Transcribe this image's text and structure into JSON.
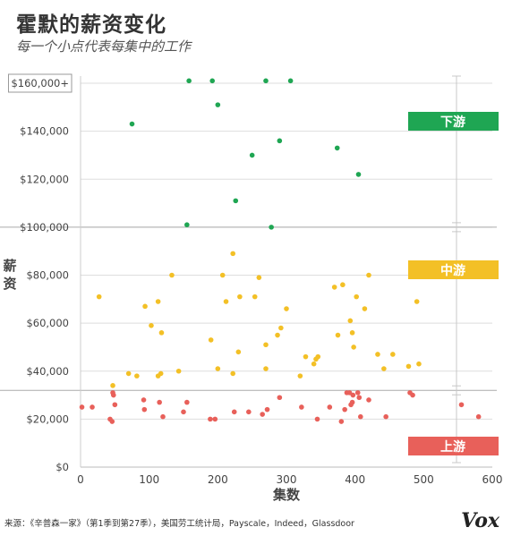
{
  "title": "霍默的薪资变化",
  "subtitle": "每一个小点代表每集中的工作",
  "footer": "来源：《辛普森一家》（第1季到第27季），美国劳工统计局，Payscale，Indeed，Glassdoor",
  "brand": "Vox",
  "chart_data": {
    "type": "scatter",
    "xlabel": "集数",
    "ylabel": "薪资",
    "xlim": [
      0,
      600
    ],
    "ylim": [
      0,
      170000
    ],
    "x_ticks": [
      0,
      100,
      200,
      300,
      400,
      500,
      600
    ],
    "x_tick_labels": [
      "0",
      "100",
      "200",
      "300",
      "400",
      "500",
      "600"
    ],
    "y_ticks": [
      0,
      20000,
      40000,
      60000,
      80000,
      100000,
      120000,
      140000,
      160000
    ],
    "y_tick_labels": [
      "$0",
      "$20,000",
      "$40,000",
      "$60,000",
      "$80,000",
      "$100,000",
      "$120,000",
      "$140,000",
      "$160,000+"
    ],
    "thresholds": [
      32000,
      100000
    ],
    "grid": "horizontal",
    "series": [
      {
        "name": "下游",
        "color": "#1fa653",
        "points": [
          [
            158,
            161000
          ],
          [
            192,
            161000
          ],
          [
            270,
            161000
          ],
          [
            306,
            161000
          ],
          [
            75,
            143000
          ],
          [
            200,
            151000
          ],
          [
            290,
            136000
          ],
          [
            374,
            133000
          ],
          [
            250,
            130000
          ],
          [
            405,
            122000
          ],
          [
            226,
            111000
          ],
          [
            155,
            101000
          ],
          [
            278,
            100000
          ]
        ]
      },
      {
        "name": "中游",
        "color": "#f3c026",
        "points": [
          [
            27,
            71000
          ],
          [
            133,
            80000
          ],
          [
            222,
            89000
          ],
          [
            207,
            80000
          ],
          [
            260,
            79000
          ],
          [
            113,
            69000
          ],
          [
            94,
            67000
          ],
          [
            212,
            69000
          ],
          [
            232,
            71000
          ],
          [
            254,
            71000
          ],
          [
            300,
            66000
          ],
          [
            370,
            75000
          ],
          [
            382,
            76000
          ],
          [
            420,
            80000
          ],
          [
            414,
            66000
          ],
          [
            402,
            71000
          ],
          [
            490,
            69000
          ],
          [
            103,
            59000
          ],
          [
            118,
            56000
          ],
          [
            190,
            53000
          ],
          [
            270,
            51000
          ],
          [
            292,
            58000
          ],
          [
            287,
            55000
          ],
          [
            375,
            55000
          ],
          [
            393,
            61000
          ],
          [
            396,
            56000
          ],
          [
            398,
            50000
          ],
          [
            230,
            48000
          ],
          [
            328,
            46000
          ],
          [
            343,
            45000
          ],
          [
            346,
            46000
          ],
          [
            433,
            47000
          ],
          [
            455,
            47000
          ],
          [
            442,
            41000
          ],
          [
            478,
            42000
          ],
          [
            493,
            43000
          ],
          [
            113,
            38000
          ],
          [
            117,
            39000
          ],
          [
            70,
            39000
          ],
          [
            82,
            38000
          ],
          [
            143,
            40000
          ],
          [
            200,
            41000
          ],
          [
            222,
            39000
          ],
          [
            270,
            41000
          ],
          [
            320,
            38000
          ],
          [
            340,
            43000
          ],
          [
            47,
            34000
          ]
        ]
      },
      {
        "name": "上游",
        "color": "#e8605a",
        "points": [
          [
            2,
            25000
          ],
          [
            17,
            25000
          ],
          [
            43,
            20000
          ],
          [
            46,
            19000
          ],
          [
            47,
            31000
          ],
          [
            48,
            30000
          ],
          [
            50,
            26000
          ],
          [
            92,
            28000
          ],
          [
            93,
            24000
          ],
          [
            115,
            27000
          ],
          [
            120,
            21000
          ],
          [
            150,
            23000
          ],
          [
            155,
            27000
          ],
          [
            189,
            20000
          ],
          [
            196,
            20000
          ],
          [
            224,
            23000
          ],
          [
            245,
            23000
          ],
          [
            265,
            22000
          ],
          [
            272,
            24000
          ],
          [
            290,
            29000
          ],
          [
            322,
            25000
          ],
          [
            345,
            20000
          ],
          [
            363,
            25000
          ],
          [
            380,
            19000
          ],
          [
            385,
            24000
          ],
          [
            388,
            31000
          ],
          [
            392,
            31000
          ],
          [
            394,
            26000
          ],
          [
            396,
            27000
          ],
          [
            397,
            30000
          ],
          [
            404,
            31000
          ],
          [
            406,
            29000
          ],
          [
            408,
            21000
          ],
          [
            420,
            28000
          ],
          [
            445,
            21000
          ],
          [
            480,
            31000
          ],
          [
            484,
            30000
          ],
          [
            555,
            26000
          ],
          [
            580,
            21000
          ]
        ]
      }
    ]
  }
}
